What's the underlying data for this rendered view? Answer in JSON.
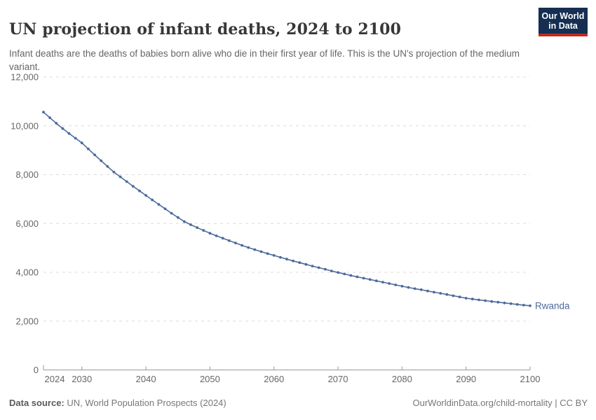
{
  "header": {
    "title": "UN projection of infant deaths, 2024 to 2100",
    "subtitle": "Infant deaths are the deaths of babies born alive who die in their first year of life. This is the UN's projection of the medium variant."
  },
  "logo": {
    "line1": "Our World",
    "line2": "in Data",
    "bg_color": "#152e52",
    "accent_color": "#c22a1e"
  },
  "chart_data": {
    "type": "line",
    "title": "UN projection of infant deaths, 2024 to 2100",
    "xlabel": "",
    "ylabel": "",
    "xlim": [
      2024,
      2100
    ],
    "ylim": [
      0,
      12000
    ],
    "grid": "horizontal-dashed",
    "legend_position": "end-of-line-label",
    "x_ticks": [
      2024,
      2030,
      2040,
      2050,
      2060,
      2070,
      2080,
      2090,
      2100
    ],
    "y_ticks": [
      0,
      2000,
      4000,
      6000,
      8000,
      10000,
      12000
    ],
    "y_tick_labels": [
      "0",
      "2,000",
      "4,000",
      "6,000",
      "8,000",
      "10,000",
      "12,000"
    ],
    "series": [
      {
        "name": "Rwanda",
        "color": "#4C6A9C",
        "x": [
          2024,
          2025,
          2026,
          2027,
          2028,
          2029,
          2030,
          2031,
          2032,
          2033,
          2034,
          2035,
          2036,
          2037,
          2038,
          2039,
          2040,
          2041,
          2042,
          2043,
          2044,
          2045,
          2046,
          2047,
          2048,
          2049,
          2050,
          2051,
          2052,
          2053,
          2054,
          2055,
          2056,
          2057,
          2058,
          2059,
          2060,
          2061,
          2062,
          2063,
          2064,
          2065,
          2066,
          2067,
          2068,
          2069,
          2070,
          2071,
          2072,
          2073,
          2074,
          2075,
          2076,
          2077,
          2078,
          2079,
          2080,
          2081,
          2082,
          2083,
          2084,
          2085,
          2086,
          2087,
          2088,
          2089,
          2090,
          2091,
          2092,
          2093,
          2094,
          2095,
          2096,
          2097,
          2098,
          2099,
          2100
        ],
        "values": [
          10560,
          10330,
          10105,
          9890,
          9685,
          9490,
          9300,
          9055,
          8810,
          8570,
          8335,
          8105,
          7910,
          7715,
          7525,
          7335,
          7150,
          6965,
          6780,
          6600,
          6420,
          6245,
          6075,
          5950,
          5830,
          5715,
          5600,
          5495,
          5395,
          5295,
          5200,
          5105,
          5015,
          4930,
          4845,
          4765,
          4690,
          4615,
          4540,
          4465,
          4395,
          4325,
          4255,
          4190,
          4125,
          4055,
          3990,
          3930,
          3870,
          3815,
          3760,
          3705,
          3650,
          3595,
          3540,
          3485,
          3430,
          3380,
          3330,
          3285,
          3235,
          3185,
          3140,
          3090,
          3040,
          2990,
          2940,
          2905,
          2870,
          2840,
          2805,
          2775,
          2745,
          2715,
          2685,
          2655,
          2630
        ]
      }
    ]
  },
  "style": {
    "grid_color": "#dcdcdc",
    "axis_color": "#9a9a9a",
    "tick_label_color": "#666666",
    "line_color": "#4C6A9C",
    "entity_label_color": "#4C6A9C"
  },
  "footer": {
    "source_label": "Data source:",
    "source_text": " UN, World Population Prospects (2024)",
    "right_text": "OurWorldinData.org/child-mortality | CC BY"
  }
}
